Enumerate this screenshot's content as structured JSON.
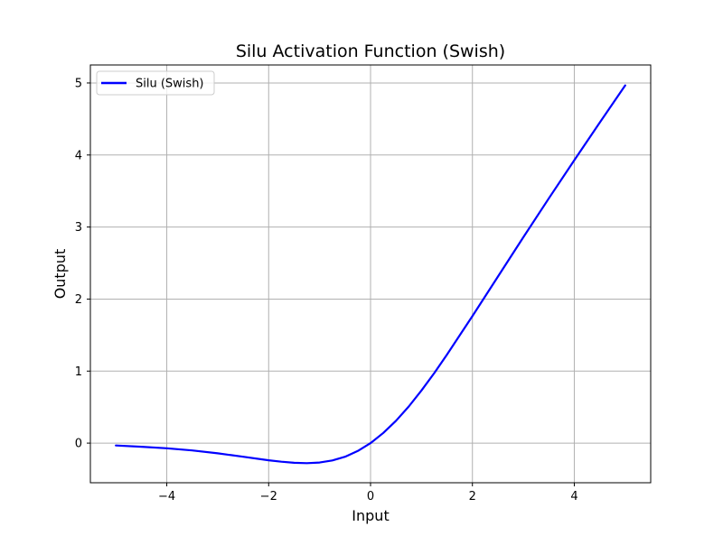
{
  "chart_data": {
    "type": "line",
    "title": "Silu Activation Function (Swish)",
    "xlabel": "Input",
    "ylabel": "Output",
    "xlim": [
      -5.5,
      5.5
    ],
    "ylim": [
      -0.55,
      5.25
    ],
    "xticks": [
      -4,
      -2,
      0,
      2,
      4
    ],
    "xtick_labels": [
      "−4",
      "−2",
      "0",
      "2",
      "4"
    ],
    "yticks": [
      0,
      1,
      2,
      3,
      4,
      5
    ],
    "ytick_labels": [
      "0",
      "1",
      "2",
      "3",
      "4",
      "5"
    ],
    "grid": true,
    "legend": {
      "placement": "top-left",
      "entries": [
        "Silu (Swish)"
      ]
    },
    "series": [
      {
        "name": "Silu (Swish)",
        "color": "#0000ff",
        "x": [
          -5.0,
          -4.5,
          -4.0,
          -3.5,
          -3.0,
          -2.5,
          -2.0,
          -1.75,
          -1.5,
          -1.25,
          -1.0,
          -0.75,
          -0.5,
          -0.25,
          0.0,
          0.25,
          0.5,
          0.75,
          1.0,
          1.25,
          1.5,
          2.0,
          2.5,
          3.0,
          3.5,
          4.0,
          4.5,
          5.0
        ],
        "y": [
          -0.033,
          -0.05,
          -0.072,
          -0.102,
          -0.142,
          -0.189,
          -0.238,
          -0.258,
          -0.273,
          -0.278,
          -0.269,
          -0.241,
          -0.189,
          -0.109,
          0.0,
          0.141,
          0.311,
          0.509,
          0.731,
          0.972,
          1.227,
          1.762,
          2.311,
          2.858,
          3.398,
          3.928,
          4.45,
          4.967
        ]
      }
    ]
  }
}
